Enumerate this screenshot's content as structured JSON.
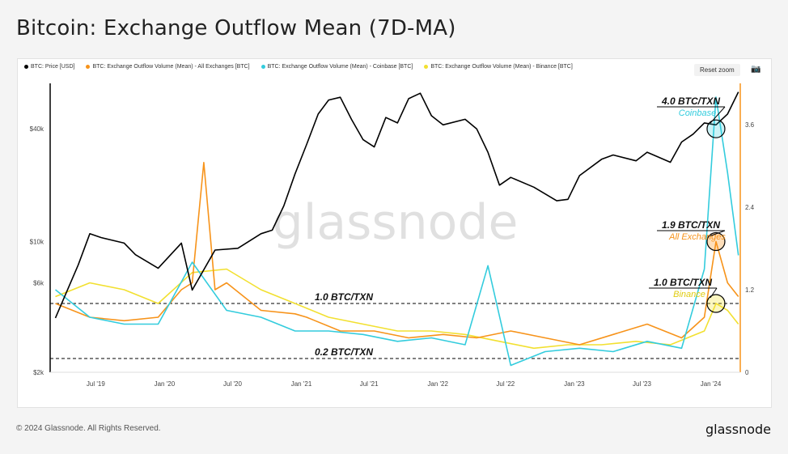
{
  "page": {
    "title": "Bitcoin: Exchange Outflow Mean (7D-MA)",
    "footer": "© 2024 Glassnode. All Rights Reserved.",
    "brand": "glassnode",
    "watermark": "glassnode",
    "reset_label": "Reset zoom",
    "camera_icon": "camera-icon"
  },
  "colors": {
    "price": "#000000",
    "all": "#f7931a",
    "coinbase": "#33ccdd",
    "binance": "#f2e030"
  },
  "chart_data": {
    "type": "line",
    "legend": [
      "BTC: Price [USD]",
      "BTC: Exchange Outflow Volume (Mean) - All Exchanges [BTC]",
      "BTC: Exchange Outflow Volume (Mean) - Coinbase [BTC]",
      "BTC: Exchange Outflow Volume (Mean) - Binance [BTC]"
    ],
    "x_ticks": [
      "Jul '19",
      "Jan '20",
      "Jul '20",
      "Jan '21",
      "Jul '21",
      "Jan '22",
      "Jul '22",
      "Jan '23",
      "Jul '23",
      "Jan '24"
    ],
    "y_left": {
      "scale": "log",
      "ticks": [
        "$2k",
        "$6k",
        "$10k",
        "$40k"
      ],
      "tick_values": [
        2000,
        6000,
        10000,
        40000
      ]
    },
    "y_right": {
      "range": [
        0,
        4.2
      ],
      "ticks": [
        "0",
        "1.2",
        "2.4",
        "3.6"
      ],
      "tick_values": [
        0,
        1.2,
        2.4,
        3.6
      ]
    },
    "reference_lines": [
      {
        "value": 1.0,
        "label": "1.0 BTC/TXN"
      },
      {
        "value": 0.2,
        "label": "0.2 BTC/TXN"
      }
    ],
    "annotations": [
      {
        "value": "4.0 BTC/TXN",
        "sub": "Coinbase",
        "color": "#33ccdd"
      },
      {
        "value": "1.9 BTC/TXN",
        "sub": "All Exchanges",
        "color": "#f7931a"
      },
      {
        "value": "1.0 BTC/TXN",
        "sub": "Binance",
        "color": "#e0cc10"
      }
    ],
    "series": [
      {
        "name": "BTC: Price [USD]",
        "axis": "left",
        "x": [
          "2019-03",
          "2019-05",
          "2019-06",
          "2019-07",
          "2019-09",
          "2019-10",
          "2019-12",
          "2020-02",
          "2020-03",
          "2020-05",
          "2020-07",
          "2020-09",
          "2020-10",
          "2020-11",
          "2020-12",
          "2021-01",
          "2021-02",
          "2021-03",
          "2021-04",
          "2021-05",
          "2021-06",
          "2021-07",
          "2021-08",
          "2021-09",
          "2021-10",
          "2021-11",
          "2021-12",
          "2022-01",
          "2022-03",
          "2022-04",
          "2022-05",
          "2022-06",
          "2022-07",
          "2022-09",
          "2022-11",
          "2022-12",
          "2023-01",
          "2023-03",
          "2023-04",
          "2023-06",
          "2023-07",
          "2023-09",
          "2023-10",
          "2023-11",
          "2023-12",
          "2024-01",
          "2024-02",
          "2024-03"
        ],
        "values": [
          3900,
          7500,
          11000,
          10500,
          9800,
          8500,
          7200,
          9800,
          5500,
          9000,
          9200,
          11000,
          11500,
          15500,
          23000,
          33000,
          48000,
          57000,
          59000,
          45000,
          35000,
          32000,
          46000,
          43000,
          58000,
          62000,
          47000,
          42000,
          45000,
          40000,
          30000,
          20000,
          22000,
          19500,
          16500,
          16800,
          22500,
          27500,
          29000,
          27000,
          30000,
          26500,
          34000,
          37500,
          43000,
          42000,
          48000,
          63000
        ]
      },
      {
        "name": "BTC: Exchange Outflow Volume (Mean) - All Exchanges [BTC]",
        "axis": "right",
        "x": [
          "2019-03",
          "2019-06",
          "2019-09",
          "2019-12",
          "2020-02",
          "2020-03",
          "2020-04",
          "2020-05",
          "2020-06",
          "2020-09",
          "2020-12",
          "2021-01",
          "2021-04",
          "2021-07",
          "2021-10",
          "2022-01",
          "2022-04",
          "2022-07",
          "2022-10",
          "2023-01",
          "2023-04",
          "2023-07",
          "2023-10",
          "2023-12",
          "2024-01",
          "2024-02",
          "2024-03"
        ],
        "values": [
          1.0,
          0.8,
          0.75,
          0.8,
          1.2,
          1.3,
          3.05,
          1.2,
          1.3,
          0.9,
          0.85,
          0.8,
          0.6,
          0.6,
          0.5,
          0.55,
          0.5,
          0.6,
          0.5,
          0.4,
          0.55,
          0.7,
          0.5,
          0.8,
          1.9,
          1.3,
          1.1
        ]
      },
      {
        "name": "BTC: Exchange Outflow Volume (Mean) - Coinbase [BTC]",
        "axis": "right",
        "x": [
          "2019-03",
          "2019-06",
          "2019-09",
          "2019-12",
          "2020-03",
          "2020-06",
          "2020-09",
          "2020-12",
          "2021-03",
          "2021-06",
          "2021-09",
          "2021-12",
          "2022-03",
          "2022-05",
          "2022-07",
          "2022-10",
          "2023-01",
          "2023-04",
          "2023-07",
          "2023-10",
          "2023-12",
          "2024-01",
          "2024-02",
          "2024-03"
        ],
        "values": [
          1.2,
          0.8,
          0.7,
          0.7,
          1.6,
          0.9,
          0.8,
          0.6,
          0.6,
          0.55,
          0.45,
          0.5,
          0.4,
          1.55,
          0.1,
          0.3,
          0.35,
          0.3,
          0.45,
          0.35,
          1.5,
          4.0,
          2.9,
          1.7
        ]
      },
      {
        "name": "BTC: Exchange Outflow Volume (Mean) - Binance [BTC]",
        "axis": "right",
        "x": [
          "2019-03",
          "2019-06",
          "2019-09",
          "2019-12",
          "2020-03",
          "2020-06",
          "2020-09",
          "2020-12",
          "2021-03",
          "2021-06",
          "2021-09",
          "2021-12",
          "2022-03",
          "2022-06",
          "2022-09",
          "2022-12",
          "2023-03",
          "2023-06",
          "2023-09",
          "2023-12",
          "2024-01",
          "2024-02",
          "2024-03"
        ],
        "values": [
          1.1,
          1.3,
          1.2,
          1.0,
          1.45,
          1.5,
          1.2,
          1.0,
          0.8,
          0.7,
          0.6,
          0.6,
          0.55,
          0.45,
          0.35,
          0.4,
          0.4,
          0.45,
          0.4,
          0.6,
          1.0,
          0.9,
          0.7
        ]
      }
    ]
  }
}
